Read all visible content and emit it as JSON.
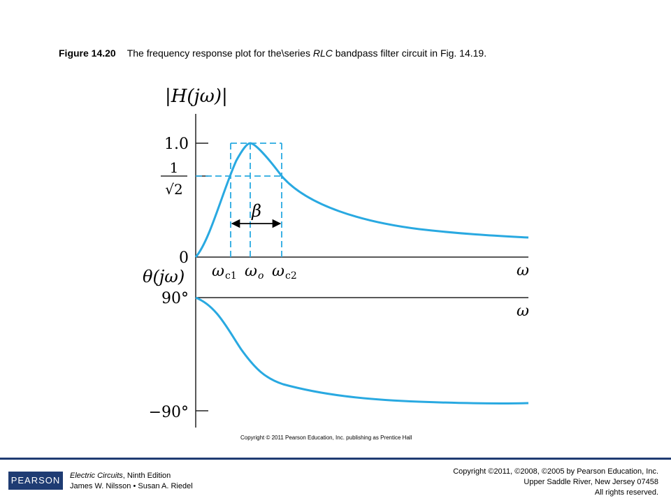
{
  "caption": {
    "figure_number": "Figure 14.20",
    "text_before": "The frequency response plot for the\\series ",
    "text_italic": "RLC",
    "text_after": " bandpass filter circuit in Fig. 14.19."
  },
  "chart_data": [
    {
      "type": "line",
      "title": "",
      "ylabel": "|H(jω)|",
      "xlabel": "ω",
      "y_ticks": [
        {
          "value": 0,
          "label": "0"
        },
        {
          "value": 0.7071,
          "label_num": "1",
          "label_den": "√2"
        },
        {
          "value": 1.0,
          "label": "1.0"
        }
      ],
      "x_markers": [
        {
          "key": "wc1",
          "symbol": "ω",
          "subscript": "c1",
          "value": 0.8
        },
        {
          "key": "wo",
          "symbol": "ω",
          "subscript": "o",
          "value": 1.0
        },
        {
          "key": "wc2",
          "symbol": "ω",
          "subscript": "c2",
          "value": 1.3
        }
      ],
      "bandwidth_label": "β",
      "series": [
        {
          "x": [
            0,
            0.3,
            0.6,
            0.8,
            0.9,
            1.0,
            1.1,
            1.3,
            1.6,
            2.0,
            2.5,
            3.0,
            3.5,
            4.0,
            4.5,
            5.0
          ],
          "y": [
            0,
            0.25,
            0.58,
            0.7,
            0.86,
            1.0,
            0.93,
            0.7,
            0.5,
            0.39,
            0.32,
            0.27,
            0.24,
            0.22,
            0.2,
            0.17
          ]
        }
      ],
      "xlim": [
        0,
        5
      ],
      "ylim": [
        0,
        1.0
      ],
      "color": "#29a9e1"
    },
    {
      "type": "line",
      "title": "",
      "ylabel": "θ(jω)",
      "xlabel": "ω",
      "y_ticks": [
        {
          "value": 90,
          "label": "90°"
        },
        {
          "value": -90,
          "label": "−90°"
        }
      ],
      "series": [
        {
          "x": [
            0,
            0.5,
            1.0,
            1.5,
            2.0,
            3.0,
            4.0,
            5.0
          ],
          "y": [
            90,
            55,
            0,
            -50,
            -70,
            -82,
            -86,
            -88
          ]
        }
      ],
      "xlim": [
        0,
        5
      ],
      "ylim": [
        -90,
        90
      ],
      "color": "#29a9e1"
    }
  ],
  "inner_copyright": "Copyright © 2011 Pearson Education, Inc. publishing as Prentice Hall",
  "footer": {
    "logo": "PEARSON",
    "book_title": "Electric Circuits",
    "book_edition": ", Ninth Edition",
    "authors": "James W. Nilsson • Susan A. Riedel",
    "copyright_line1": "Copyright ©2011, ©2008, ©2005 by Pearson Education, Inc.",
    "copyright_line2": "Upper Saddle River, New Jersey 07458",
    "copyright_line3": "All rights reserved."
  }
}
